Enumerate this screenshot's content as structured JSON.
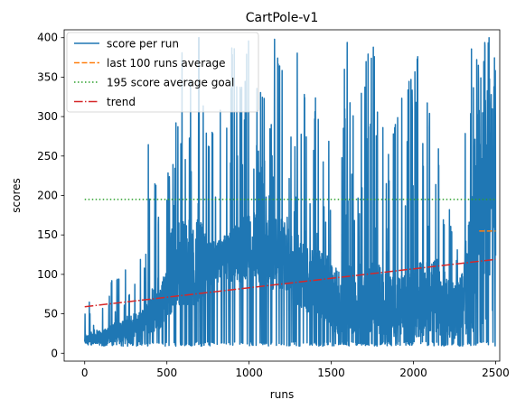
{
  "chart_data": {
    "type": "line",
    "title": "CartPole-v1",
    "xlabel": "runs",
    "ylabel": "scores",
    "xlim": [
      -125,
      2525
    ],
    "ylim": [
      -10,
      410
    ],
    "xticks": [
      0,
      500,
      1000,
      1500,
      2000,
      2500
    ],
    "yticks": [
      0,
      50,
      100,
      150,
      200,
      250,
      300,
      350,
      400
    ],
    "legend_position": "top-left",
    "grid": false,
    "series": [
      {
        "name": "score per run",
        "style": "solid",
        "color": "#1f77b4",
        "envelope": {
          "x": [
            0,
            50,
            100,
            150,
            200,
            250,
            300,
            350,
            400,
            450,
            500,
            550,
            600,
            650,
            700,
            750,
            800,
            850,
            900,
            950,
            1000,
            1050,
            1100,
            1150,
            1200,
            1250,
            1300,
            1350,
            1400,
            1450,
            1500,
            1550,
            1600,
            1650,
            1700,
            1750,
            1800,
            1850,
            1900,
            1950,
            2000,
            2050,
            2100,
            2150,
            2200,
            2250,
            2300,
            2350,
            2400,
            2450,
            2500
          ],
          "low": [
            9,
            9,
            9,
            9,
            9,
            9,
            9,
            9,
            9,
            9,
            9,
            9,
            9,
            9,
            9,
            9,
            9,
            9,
            9,
            9,
            9,
            9,
            9,
            9,
            9,
            9,
            9,
            9,
            9,
            9,
            9,
            9,
            9,
            9,
            9,
            9,
            9,
            9,
            9,
            9,
            9,
            9,
            9,
            9,
            9,
            9,
            9,
            9,
            9,
            9,
            9
          ],
          "high": [
            52,
            75,
            60,
            80,
            120,
            105,
            115,
            120,
            315,
            175,
            220,
            280,
            400,
            400,
            400,
            260,
            300,
            350,
            400,
            330,
            400,
            340,
            330,
            400,
            380,
            260,
            400,
            300,
            330,
            250,
            290,
            300,
            400,
            270,
            360,
            400,
            300,
            250,
            300,
            340,
            350,
            400,
            300,
            330,
            220,
            120,
            330,
            400,
            400,
            400,
            400
          ],
          "typ_low": [
            10,
            12,
            12,
            12,
            15,
            15,
            20,
            20,
            25,
            30,
            40,
            60,
            60,
            60,
            60,
            80,
            90,
            90,
            90,
            90,
            90,
            90,
            90,
            80,
            80,
            70,
            60,
            50,
            50,
            40,
            30,
            20,
            30,
            20,
            20,
            20,
            20,
            20,
            20,
            20,
            20,
            20,
            20,
            20,
            20,
            15,
            20,
            20,
            30,
            40,
            40
          ],
          "typ_high": [
            25,
            30,
            30,
            35,
            45,
            45,
            50,
            55,
            70,
            80,
            110,
            120,
            170,
            170,
            170,
            150,
            140,
            150,
            160,
            170,
            180,
            180,
            180,
            170,
            170,
            160,
            150,
            140,
            140,
            130,
            120,
            110,
            120,
            100,
            110,
            120,
            110,
            100,
            100,
            100,
            110,
            120,
            120,
            120,
            110,
            80,
            120,
            200,
            300,
            350,
            300
          ]
        }
      },
      {
        "name": "last 100 runs average",
        "style": "dashed",
        "color": "#ff7f0e",
        "x": [
          2400,
          2500
        ],
        "y": [
          155,
          155
        ]
      },
      {
        "name": "195 score average goal",
        "style": "dotted",
        "color": "#2ca02c",
        "x": [
          0,
          2500
        ],
        "y": [
          195,
          195
        ]
      },
      {
        "name": "trend",
        "style": "dashdot",
        "color": "#d62728",
        "x": [
          0,
          2500
        ],
        "y": [
          59,
          119
        ]
      }
    ]
  }
}
